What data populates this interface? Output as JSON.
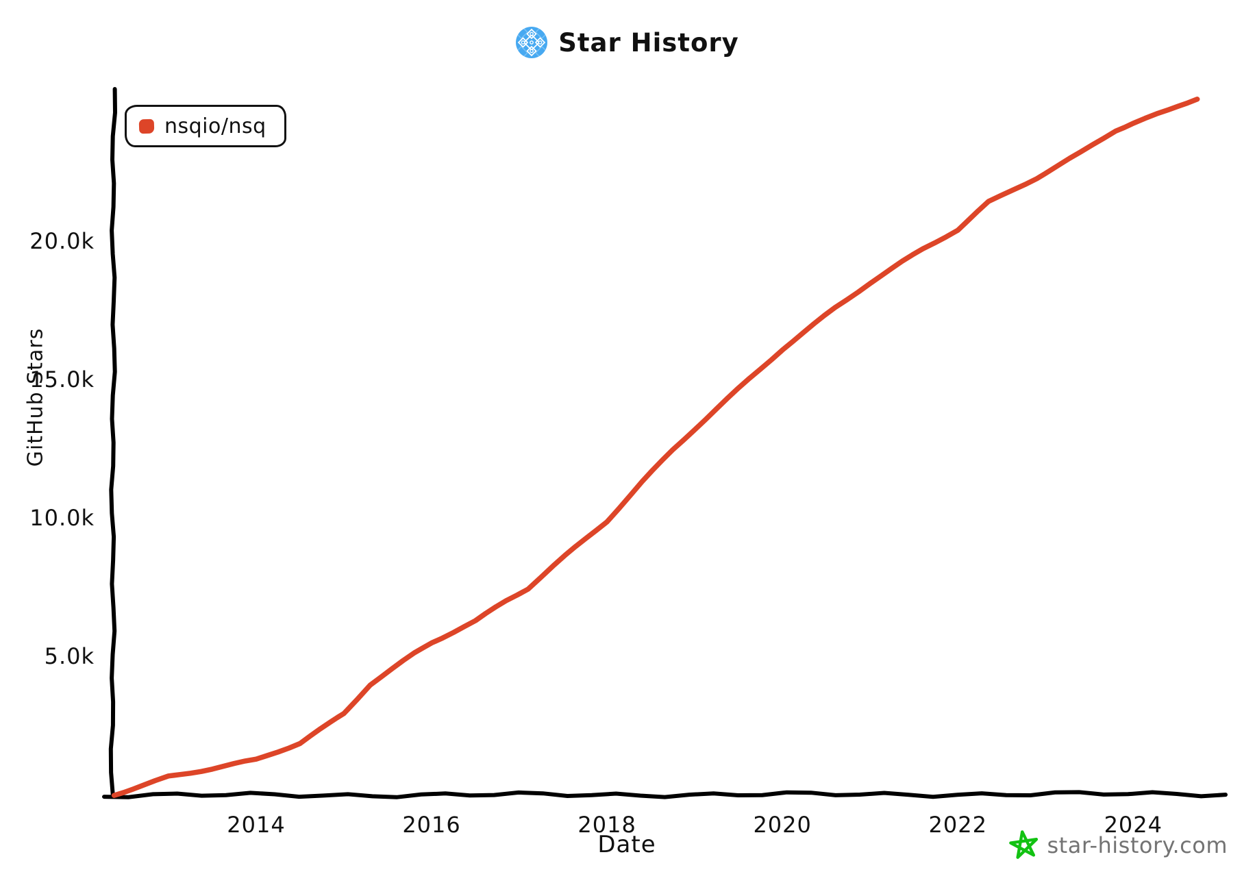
{
  "header": {
    "title": "Star History",
    "icon": "star-history-logo",
    "icon_bg_color": "#47a9f1"
  },
  "legend": {
    "series_label": "nsqio/nsq",
    "marker_color": "#dd4528"
  },
  "watermark": {
    "text": "star-history.com",
    "text_color": "#737373",
    "star_color": "#12c212"
  },
  "colors": {
    "line": "#dd4528",
    "axis": "#000000",
    "tick_text": "#111111"
  },
  "chart_data": {
    "type": "line",
    "title": "Star History",
    "xlabel": "Date",
    "ylabel": "GitHub Stars",
    "grid": false,
    "legend_position": "top-left",
    "xlim": [
      2012.36,
      2025.06
    ],
    "ylim": [
      0,
      25540
    ],
    "x_ticks": [
      {
        "value": 2014,
        "label": "2014"
      },
      {
        "value": 2016,
        "label": "2016"
      },
      {
        "value": 2018,
        "label": "2018"
      },
      {
        "value": 2020,
        "label": "2020"
      },
      {
        "value": 2022,
        "label": "2022"
      },
      {
        "value": 2024,
        "label": "2024"
      }
    ],
    "y_ticks": [
      {
        "value": 5000,
        "label": "5.0k"
      },
      {
        "value": 10000,
        "label": "10.0k"
      },
      {
        "value": 15000,
        "label": "15.0k"
      },
      {
        "value": 20000,
        "label": "20.0k"
      }
    ],
    "series": [
      {
        "name": "nsqio/nsq",
        "color": "#dd4528",
        "points": [
          [
            2012.38,
            0
          ],
          [
            2012.7,
            320
          ],
          [
            2013.0,
            660
          ],
          [
            2013.5,
            950
          ],
          [
            2014.0,
            1250
          ],
          [
            2014.5,
            1850
          ],
          [
            2014.85,
            2600
          ],
          [
            2015.0,
            2950
          ],
          [
            2015.3,
            4000
          ],
          [
            2015.8,
            5100
          ],
          [
            2016.0,
            5500
          ],
          [
            2016.5,
            6250
          ],
          [
            2016.85,
            7000
          ],
          [
            2017.1,
            7450
          ],
          [
            2017.4,
            8300
          ],
          [
            2018.0,
            9900
          ],
          [
            2018.4,
            11300
          ],
          [
            2018.75,
            12450
          ],
          [
            2019.0,
            13200
          ],
          [
            2019.5,
            14650
          ],
          [
            2020.0,
            16100
          ],
          [
            2020.6,
            17600
          ],
          [
            2021.0,
            18500
          ],
          [
            2021.25,
            19000
          ],
          [
            2021.6,
            19700
          ],
          [
            2022.0,
            20400
          ],
          [
            2022.35,
            21400
          ],
          [
            2022.9,
            22300
          ],
          [
            2023.4,
            23200
          ],
          [
            2023.8,
            24000
          ],
          [
            2024.0,
            24250
          ],
          [
            2024.4,
            24700
          ],
          [
            2024.73,
            25150
          ]
        ]
      }
    ]
  }
}
